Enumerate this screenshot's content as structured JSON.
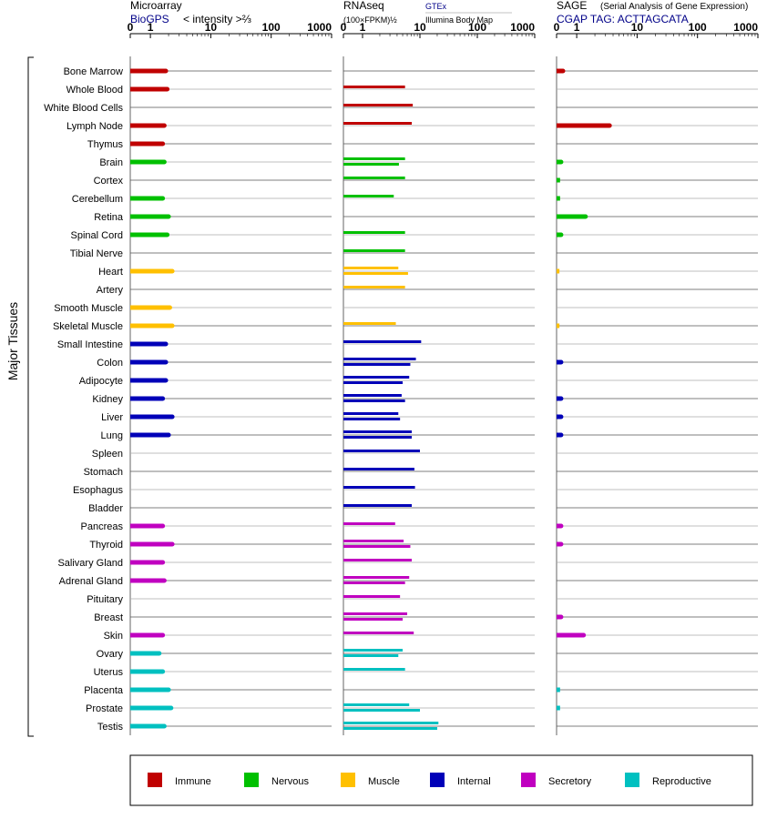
{
  "chart_data": {
    "type": "bar",
    "orientation": "horizontal",
    "group_label": "Major Tissues",
    "categories": [
      "Bone Marrow",
      "Whole Blood",
      "White Blood Cells",
      "Lymph Node",
      "Thymus",
      "Brain",
      "Cortex",
      "Cerebellum",
      "Retina",
      "Spinal Cord",
      "Tibial Nerve",
      "Heart",
      "Artery",
      "Smooth Muscle",
      "Skeletal Muscle",
      "Small Intestine",
      "Colon",
      "Adipocyte",
      "Kidney",
      "Liver",
      "Lung",
      "Spleen",
      "Stomach",
      "Esophagus",
      "Bladder",
      "Pancreas",
      "Thyroid",
      "Salivary Gland",
      "Adrenal Gland",
      "Pituitary",
      "Breast",
      "Skin",
      "Ovary",
      "Uterus",
      "Placenta",
      "Prostate",
      "Testis"
    ],
    "tissue_groups": [
      "Immune",
      "Immune",
      "Immune",
      "Immune",
      "Immune",
      "Nervous",
      "Nervous",
      "Nervous",
      "Nervous",
      "Nervous",
      "Nervous",
      "Muscle",
      "Muscle",
      "Muscle",
      "Muscle",
      "Internal",
      "Internal",
      "Internal",
      "Internal",
      "Internal",
      "Internal",
      "Internal",
      "Internal",
      "Internal",
      "Internal",
      "Secretory",
      "Secretory",
      "Secretory",
      "Secretory",
      "Secretory",
      "Secretory",
      "Secretory",
      "Reproductive",
      "Reproductive",
      "Reproductive",
      "Reproductive",
      "Reproductive"
    ],
    "legend": [
      {
        "name": "Immune",
        "color": "#c00000"
      },
      {
        "name": "Nervous",
        "color": "#00c000"
      },
      {
        "name": "Muscle",
        "color": "#ffc000"
      },
      {
        "name": "Internal",
        "color": "#0000b8"
      },
      {
        "name": "Secretory",
        "color": "#c000c0"
      },
      {
        "name": "Reproductive",
        "color": "#00c0c0"
      }
    ],
    "legend_placement": "bottom",
    "panels": [
      {
        "id": "microarray",
        "title": "Microarray",
        "subtitle": "BioGPS",
        "axis_label": "< intensity >⅔",
        "scale": "power-2/3",
        "ticks": [
          0,
          1,
          10,
          100,
          1000
        ],
        "range": [
          0,
          1000
        ],
        "series": [
          {
            "name": "",
            "values": [
              1.8,
              1.9,
              null,
              1.7,
              1.6,
              1.7,
              null,
              1.6,
              2.0,
              1.9,
              null,
              2.3,
              null,
              2.1,
              2.3,
              1.8,
              1.8,
              1.8,
              1.6,
              2.3,
              2.0,
              null,
              null,
              null,
              null,
              1.6,
              2.3,
              1.6,
              1.7,
              null,
              null,
              1.6,
              1.4,
              1.6,
              2.0,
              2.2,
              1.7
            ]
          }
        ]
      },
      {
        "id": "rnaseq",
        "title": "RNAseq",
        "subtitle": "(100×FPKM)½",
        "ticks": [
          0,
          1,
          10,
          100,
          1000
        ],
        "range": [
          0,
          1000
        ],
        "series": [
          {
            "name": "GTEx",
            "values": [
              null,
              5.5,
              7.5,
              7.2,
              null,
              5.5,
              5.5,
              3.5,
              null,
              5.5,
              5.5,
              4.2,
              5.5,
              null,
              3.8,
              10.5,
              8.5,
              6.5,
              4.8,
              4.2,
              7.2,
              10,
              8,
              8.2,
              7.2,
              3.7,
              5.2,
              7.2,
              6.5,
              4.5,
              6,
              7.8,
              5,
              5.5,
              null,
              6.5,
              21
            ]
          },
          {
            "name": "Illumina Body Map",
            "values": [
              null,
              null,
              null,
              null,
              null,
              4.3,
              null,
              null,
              null,
              null,
              null,
              6.2,
              null,
              null,
              null,
              null,
              6.8,
              5,
              5.5,
              4.5,
              7.2,
              null,
              null,
              null,
              null,
              null,
              6.8,
              null,
              5.5,
              null,
              5,
              null,
              4.2,
              null,
              null,
              10,
              20
            ]
          }
        ]
      },
      {
        "id": "sage",
        "title": "SAGE",
        "title_note": "(Serial Analysis of Gene Expression)",
        "subtitle": "CGAP TAG: ACTTAGCATA",
        "ticks": [
          0,
          1,
          10,
          100,
          1000
        ],
        "range": [
          0,
          1000
        ],
        "series": [
          {
            "name": "",
            "values": [
              0.1,
              null,
              null,
              3.5,
              null,
              0.05,
              0.03,
              0.03,
              1.4,
              0.05,
              null,
              0.02,
              null,
              null,
              0.02,
              null,
              0.05,
              null,
              0.05,
              0.05,
              0.05,
              null,
              null,
              null,
              null,
              0.05,
              0.05,
              null,
              null,
              null,
              0.05,
              1.3,
              null,
              null,
              0.03,
              0.03,
              null
            ]
          }
        ]
      }
    ]
  }
}
